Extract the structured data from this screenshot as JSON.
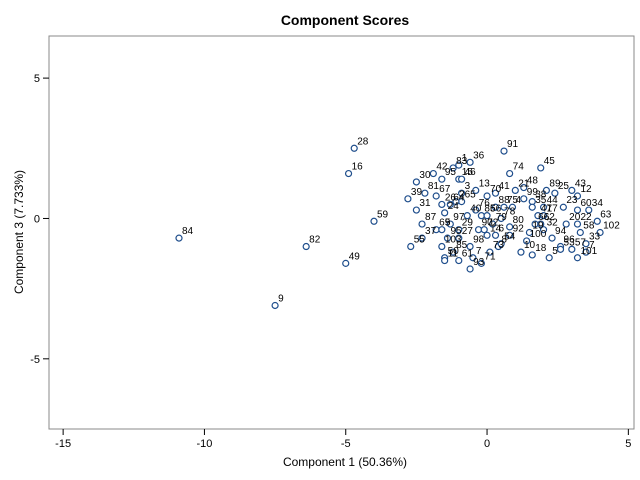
{
  "chart_data": {
    "type": "scatter",
    "title": "Component Scores",
    "xlabel": "Component 1 (50.36%)",
    "ylabel": "Component 3 (7.733%)",
    "xlim": [
      -15.5,
      5.2
    ],
    "ylim": [
      -7.5,
      6.5
    ],
    "xticks": [
      -15,
      -10,
      -5,
      0,
      5
    ],
    "yticks": [
      -5,
      0,
      5
    ],
    "xtick_labels": [
      "-15",
      "-10",
      "-5",
      "0",
      "5"
    ],
    "ytick_labels": [
      "-5",
      "0",
      "5"
    ],
    "grid": false,
    "points": [
      {
        "label": "84",
        "x": -10.9,
        "y": -0.7
      },
      {
        "label": "9",
        "x": -7.5,
        "y": -3.1
      },
      {
        "label": "82",
        "x": -6.4,
        "y": -1.0
      },
      {
        "label": "49",
        "x": -5.0,
        "y": -1.6
      },
      {
        "label": "16",
        "x": -4.9,
        "y": 1.6
      },
      {
        "label": "28",
        "x": -4.7,
        "y": 2.5
      },
      {
        "label": "59",
        "x": -4.0,
        "y": -0.1
      },
      {
        "label": "55",
        "x": -2.7,
        "y": -1.0
      },
      {
        "label": "39",
        "x": -2.8,
        "y": 0.7
      },
      {
        "label": "31",
        "x": -2.5,
        "y": 0.3
      },
      {
        "label": "30",
        "x": -2.5,
        "y": 1.3
      },
      {
        "label": "81",
        "x": -2.2,
        "y": 0.9
      },
      {
        "label": "87",
        "x": -2.3,
        "y": -0.2
      },
      {
        "label": "37",
        "x": -2.3,
        "y": -0.7
      },
      {
        "label": "103",
        "x": -1.6,
        "y": -1.0
      },
      {
        "label": "50",
        "x": -1.5,
        "y": -1.4
      },
      {
        "label": "42",
        "x": -1.9,
        "y": 1.6
      },
      {
        "label": "95",
        "x": -1.6,
        "y": 1.4
      },
      {
        "label": "83",
        "x": -1.2,
        "y": 1.8
      },
      {
        "label": "15",
        "x": -1.0,
        "y": 1.4
      },
      {
        "label": "67",
        "x": -1.8,
        "y": 0.8
      },
      {
        "label": "26",
        "x": -1.6,
        "y": 0.5
      },
      {
        "label": "64",
        "x": -1.3,
        "y": 0.5
      },
      {
        "label": "69",
        "x": -1.8,
        "y": -0.4
      },
      {
        "label": "5",
        "x": -1.6,
        "y": -0.4
      },
      {
        "label": "97",
        "x": -1.3,
        "y": -0.2
      },
      {
        "label": "24",
        "x": -1.5,
        "y": 0.2
      },
      {
        "label": "1",
        "x": -1.0,
        "y": 1.9
      },
      {
        "label": "36",
        "x": -0.6,
        "y": 2.0
      },
      {
        "label": "46",
        "x": -0.9,
        "y": 1.4
      },
      {
        "label": "3",
        "x": -0.9,
        "y": 0.9
      },
      {
        "label": "13",
        "x": -0.4,
        "y": 1.0
      },
      {
        "label": "65",
        "x": -0.9,
        "y": 0.6
      },
      {
        "label": "76",
        "x": -0.4,
        "y": 0.3
      },
      {
        "label": "2",
        "x": -1.1,
        "y": 0.6
      },
      {
        "label": "40",
        "x": -0.7,
        "y": 0.1
      },
      {
        "label": "29",
        "x": -1.0,
        "y": -0.4
      },
      {
        "label": "95",
        "x": -1.4,
        "y": -0.7
      },
      {
        "label": "27",
        "x": -1.0,
        "y": -0.7
      },
      {
        "label": "85",
        "x": -1.2,
        "y": -1.2
      },
      {
        "label": "11",
        "x": -1.5,
        "y": -1.5
      },
      {
        "label": "61",
        "x": -1.0,
        "y": -1.5
      },
      {
        "label": "93",
        "x": -0.6,
        "y": -1.8
      },
      {
        "label": "7",
        "x": -0.5,
        "y": -1.4
      },
      {
        "label": "98",
        "x": -0.6,
        "y": -1.0
      },
      {
        "label": "90",
        "x": -0.3,
        "y": -0.4
      },
      {
        "label": "72",
        "x": -0.1,
        "y": -0.4
      },
      {
        "label": "70",
        "x": 0.0,
        "y": 0.8
      },
      {
        "label": "86",
        "x": -0.2,
        "y": 0.1
      },
      {
        "label": "56",
        "x": 0.0,
        "y": 0.1
      },
      {
        "label": "79",
        "x": 0.2,
        "y": -0.2
      },
      {
        "label": "14",
        "x": 0.0,
        "y": -0.6
      },
      {
        "label": "6",
        "x": 0.3,
        "y": -0.6
      },
      {
        "label": "71",
        "x": -0.2,
        "y": -1.6
      },
      {
        "label": "73",
        "x": 0.1,
        "y": -1.2
      },
      {
        "label": "8",
        "x": 0.4,
        "y": -1.0
      },
      {
        "label": "91",
        "x": 0.6,
        "y": 2.4
      },
      {
        "label": "74",
        "x": 0.8,
        "y": 1.6
      },
      {
        "label": "41",
        "x": 0.3,
        "y": 0.9
      },
      {
        "label": "88",
        "x": 0.3,
        "y": 0.4
      },
      {
        "label": "75",
        "x": 0.6,
        "y": 0.4
      },
      {
        "label": "4",
        "x": 0.9,
        "y": 0.4
      },
      {
        "label": "78",
        "x": 0.5,
        "y": 0.0
      },
      {
        "label": "80",
        "x": 0.8,
        "y": -0.3
      },
      {
        "label": "92",
        "x": 0.8,
        "y": -0.6
      },
      {
        "label": "54",
        "x": 0.5,
        "y": -0.9
      },
      {
        "label": "10",
        "x": 1.2,
        "y": -1.2
      },
      {
        "label": "100",
        "x": 1.4,
        "y": -0.8
      },
      {
        "label": "19",
        "x": 1.5,
        "y": -0.5
      },
      {
        "label": "66",
        "x": 1.7,
        "y": -0.2
      },
      {
        "label": "62",
        "x": 1.9,
        "y": -0.2
      },
      {
        "label": "32",
        "x": 2.0,
        "y": -0.4
      },
      {
        "label": "18",
        "x": 1.6,
        "y": -1.3
      },
      {
        "label": "45",
        "x": 1.9,
        "y": 1.8
      },
      {
        "label": "48",
        "x": 1.3,
        "y": 1.1
      },
      {
        "label": "89",
        "x": 2.1,
        "y": 1.0
      },
      {
        "label": "99",
        "x": 1.3,
        "y": 0.7
      },
      {
        "label": "38",
        "x": 1.6,
        "y": 0.6
      },
      {
        "label": "35",
        "x": 1.6,
        "y": 0.4
      },
      {
        "label": "44",
        "x": 2.0,
        "y": 0.4
      },
      {
        "label": "47",
        "x": 1.8,
        "y": 0.1
      },
      {
        "label": "17",
        "x": 2.0,
        "y": 0.1
      },
      {
        "label": "25",
        "x": 2.4,
        "y": 0.9
      },
      {
        "label": "23",
        "x": 2.7,
        "y": 0.4
      },
      {
        "label": "43",
        "x": 3.0,
        "y": 1.0
      },
      {
        "label": "12",
        "x": 3.2,
        "y": 0.8
      },
      {
        "label": "60",
        "x": 3.2,
        "y": 0.3
      },
      {
        "label": "34",
        "x": 3.6,
        "y": 0.3
      },
      {
        "label": "20",
        "x": 2.8,
        "y": -0.2
      },
      {
        "label": "22",
        "x": 3.2,
        "y": -0.2
      },
      {
        "label": "63",
        "x": 3.9,
        "y": -0.1
      },
      {
        "label": "58",
        "x": 3.3,
        "y": -0.5
      },
      {
        "label": "102",
        "x": 4.0,
        "y": -0.5
      },
      {
        "label": "94",
        "x": 2.3,
        "y": -0.7
      },
      {
        "label": "96",
        "x": 2.6,
        "y": -1.0
      },
      {
        "label": "53",
        "x": 2.6,
        "y": -1.1
      },
      {
        "label": "5",
        "x": 2.2,
        "y": -1.4
      },
      {
        "label": "101",
        "x": 3.2,
        "y": -1.4
      },
      {
        "label": "57",
        "x": 3.0,
        "y": -1.1
      },
      {
        "label": "7",
        "x": 3.5,
        "y": -1.2
      },
      {
        "label": "33",
        "x": 3.5,
        "y": -0.9
      },
      {
        "label": "21",
        "x": 1.0,
        "y": 1.0
      }
    ]
  }
}
